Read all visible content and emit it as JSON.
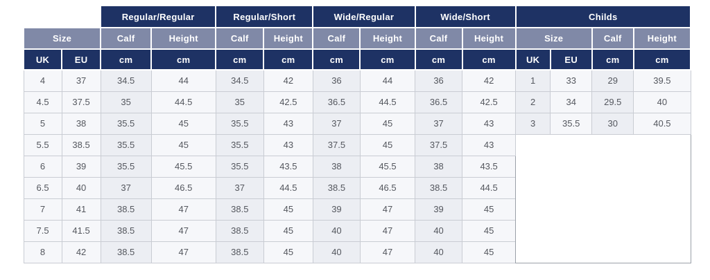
{
  "colors": {
    "navy": "#1e3264",
    "slate": "#8089a7",
    "header_text": "#ffffff",
    "row_light": "#f6f7fa",
    "row_shaded": "#eceef3",
    "cell_border": "#c9ccd3",
    "cell_text": "#54575e"
  },
  "table": {
    "groups": [
      {
        "label": "Regular/Regular"
      },
      {
        "label": "Regular/Short"
      },
      {
        "label": "Wide/Regular"
      },
      {
        "label": "Wide/Short"
      },
      {
        "label": "Childs"
      }
    ],
    "sub_headers": [
      "Size",
      "Calf",
      "Height",
      "Calf",
      "Height",
      "Calf",
      "Height",
      "Calf",
      "Height",
      "Size",
      "Calf",
      "Height"
    ],
    "unit_headers": [
      "UK",
      "EU",
      "cm",
      "cm",
      "cm",
      "cm",
      "cm",
      "cm",
      "cm",
      "cm",
      "UK",
      "EU",
      "cm",
      "cm"
    ],
    "rows": [
      [
        "4",
        "37",
        "34.5",
        "44",
        "34.5",
        "42",
        "36",
        "44",
        "36",
        "42",
        "1",
        "33",
        "29",
        "39.5"
      ],
      [
        "4.5",
        "37.5",
        "35",
        "44.5",
        "35",
        "42.5",
        "36.5",
        "44.5",
        "36.5",
        "42.5",
        "2",
        "34",
        "29.5",
        "40"
      ],
      [
        "5",
        "38",
        "35.5",
        "45",
        "35.5",
        "43",
        "37",
        "45",
        "37",
        "43",
        "3",
        "35.5",
        "30",
        "40.5"
      ],
      [
        "5.5",
        "38.5",
        "35.5",
        "45",
        "35.5",
        "43",
        "37.5",
        "45",
        "37.5",
        "43"
      ],
      [
        "6",
        "39",
        "35.5",
        "45.5",
        "35.5",
        "43.5",
        "38",
        "45.5",
        "38",
        "43.5"
      ],
      [
        "6.5",
        "40",
        "37",
        "46.5",
        "37",
        "44.5",
        "38.5",
        "46.5",
        "38.5",
        "44.5"
      ],
      [
        "7",
        "41",
        "38.5",
        "47",
        "38.5",
        "45",
        "39",
        "47",
        "39",
        "45"
      ],
      [
        "7.5",
        "41.5",
        "38.5",
        "47",
        "38.5",
        "45",
        "40",
        "47",
        "40",
        "45"
      ],
      [
        "8",
        "42",
        "38.5",
        "47",
        "38.5",
        "45",
        "40",
        "47",
        "40",
        "45"
      ]
    ]
  }
}
